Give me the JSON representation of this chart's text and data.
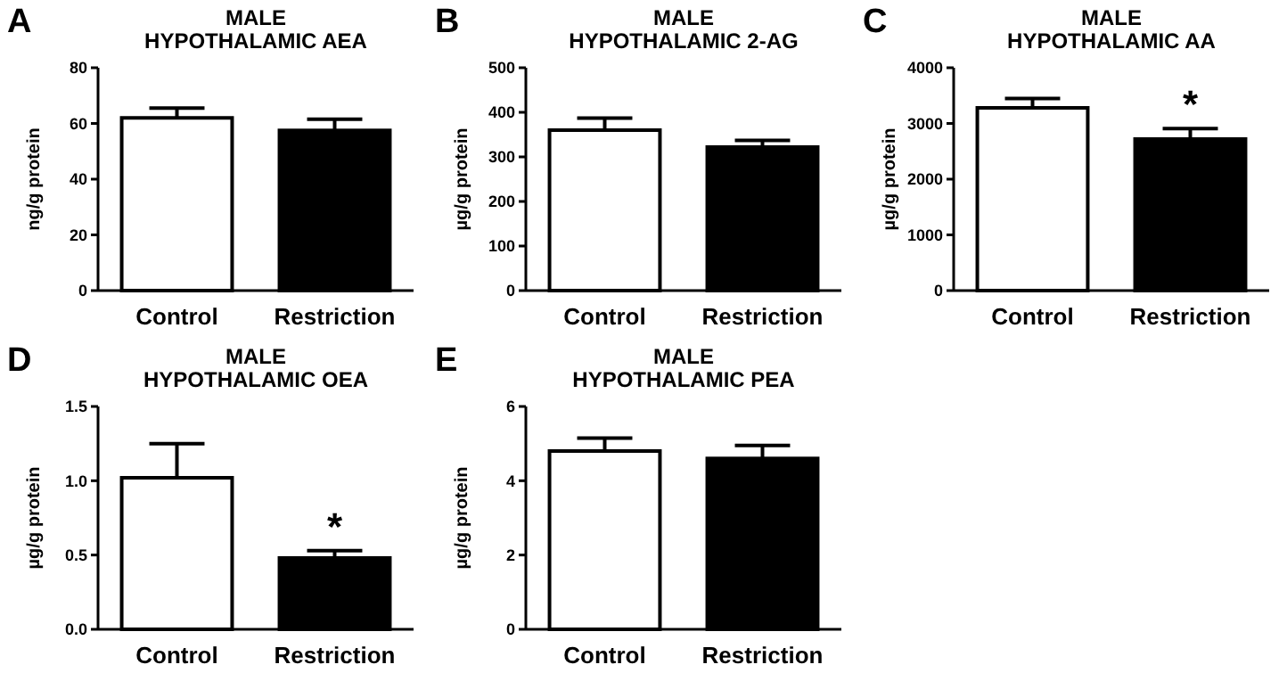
{
  "chart_data": [
    {
      "type": "bar",
      "title": "MALE",
      "subtitle": "HYPOTHALAMIC AEA",
      "ylabel": "ng/g protein",
      "annotations": [
        "A"
      ],
      "categories": [
        "Control",
        "Restriction"
      ],
      "values": [
        62,
        57.5
      ],
      "errors": [
        3.5,
        4
      ],
      "colors": [
        "#ffffff",
        "#000000"
      ],
      "ylim": [
        0,
        80
      ],
      "yticks": [
        0,
        20,
        40,
        60,
        80
      ]
    },
    {
      "type": "bar",
      "title": "MALE",
      "subtitle": "HYPOTHALAMIC 2-AG",
      "ylabel": "µg/g protein",
      "annotations": [
        "B"
      ],
      "categories": [
        "Control",
        "Restriction"
      ],
      "values": [
        360,
        322
      ],
      "errors": [
        27,
        15
      ],
      "colors": [
        "#ffffff",
        "#000000"
      ],
      "ylim": [
        0,
        500
      ],
      "yticks": [
        0,
        100,
        200,
        300,
        400,
        500
      ]
    },
    {
      "type": "bar",
      "title": "MALE",
      "subtitle": "HYPOTHALAMIC AA",
      "ylabel": "µg/g protein",
      "annotations": [
        "C",
        "*"
      ],
      "categories": [
        "Control",
        "Restriction"
      ],
      "values": [
        3280,
        2720
      ],
      "errors": [
        170,
        190
      ],
      "colors": [
        "#ffffff",
        "#000000"
      ],
      "ylim": [
        0,
        4000
      ],
      "yticks": [
        0,
        1000,
        2000,
        3000,
        4000
      ]
    },
    {
      "type": "bar",
      "title": "MALE",
      "subtitle": "HYPOTHALAMIC OEA",
      "ylabel": "µg/g protein",
      "annotations": [
        "D",
        "*"
      ],
      "categories": [
        "Control",
        "Restriction"
      ],
      "values": [
        1.02,
        0.48
      ],
      "errors": [
        0.23,
        0.05
      ],
      "colors": [
        "#ffffff",
        "#000000"
      ],
      "ylim": [
        0,
        1.5
      ],
      "yticks": [
        {
          "value": 0,
          "label": "0.0"
        },
        0.5,
        {
          "value": 1,
          "label": "1.0"
        },
        1.5
      ]
    },
    {
      "type": "bar",
      "title": "MALE",
      "subtitle": "HYPOTHALAMIC PEA",
      "ylabel": "µg/g protein",
      "annotations": [
        "E"
      ],
      "categories": [
        "Control",
        "Restriction"
      ],
      "values": [
        4.8,
        4.6
      ],
      "errors": [
        0.35,
        0.35
      ],
      "colors": [
        "#ffffff",
        "#000000"
      ],
      "ylim": [
        0,
        6
      ],
      "yticks": [
        0,
        2,
        4,
        6
      ]
    }
  ]
}
